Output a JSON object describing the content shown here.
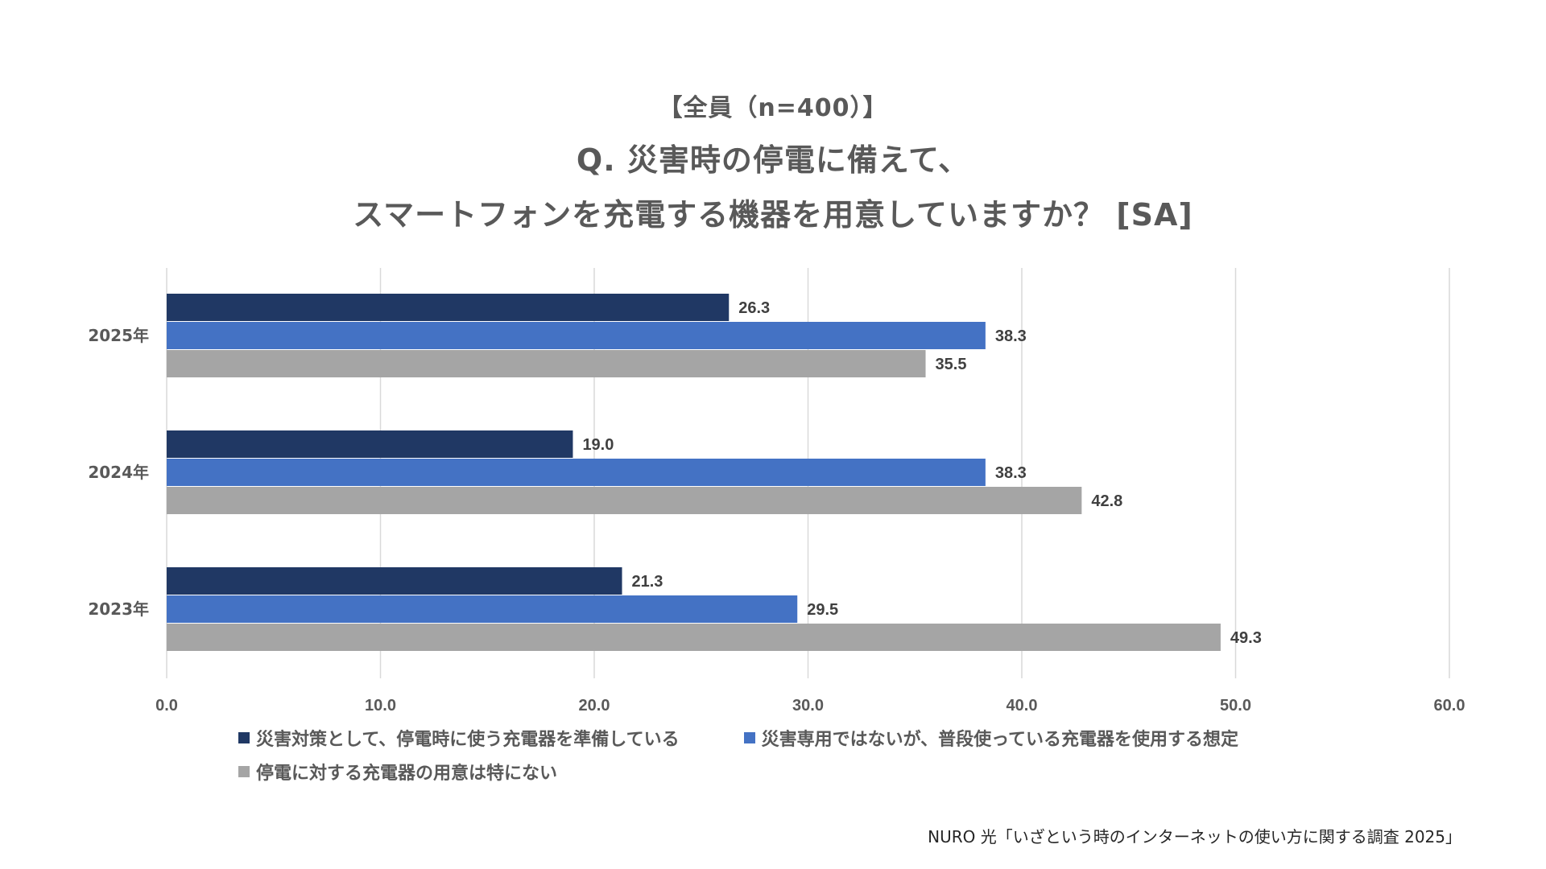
{
  "chart_data": {
    "type": "bar",
    "orientation": "horizontal",
    "subtitle": "【全員（n=400）】",
    "title_lines": [
      "Q. 災害時の停電に備えて、",
      "スマートフォンを充電する機器を用意していますか？ [SA]"
    ],
    "categories": [
      "2025年",
      "2024年",
      "2023年"
    ],
    "series": [
      {
        "name": "災害対策として、停電時に使う充電器を準備している",
        "color": "#203864",
        "values": [
          26.3,
          19.0,
          21.3
        ],
        "labels": [
          "26.3",
          "19.0",
          "21.3"
        ]
      },
      {
        "name": "災害専用ではないが、普段使っている充電器を使用する想定",
        "color": "#4472C4",
        "values": [
          38.3,
          38.3,
          29.5
        ],
        "labels": [
          "38.3",
          "38.3",
          "29.5"
        ]
      },
      {
        "name": "停電に対する充電器の用意は特にない",
        "color": "#A5A5A5",
        "values": [
          35.5,
          42.8,
          49.3
        ],
        "labels": [
          "35.5",
          "42.8",
          "49.3"
        ]
      }
    ],
    "xlim": [
      0,
      60
    ],
    "xticks": [
      "0.0",
      "10.0",
      "20.0",
      "30.0",
      "40.0",
      "50.0",
      "60.0"
    ],
    "grid": true,
    "legend_position": "bottom"
  },
  "colors": {
    "gridline": "#D9D9D9",
    "text": "#595959"
  },
  "source": "NURO 光「いざという時のインターネットの使い方に関する調査 2025」"
}
